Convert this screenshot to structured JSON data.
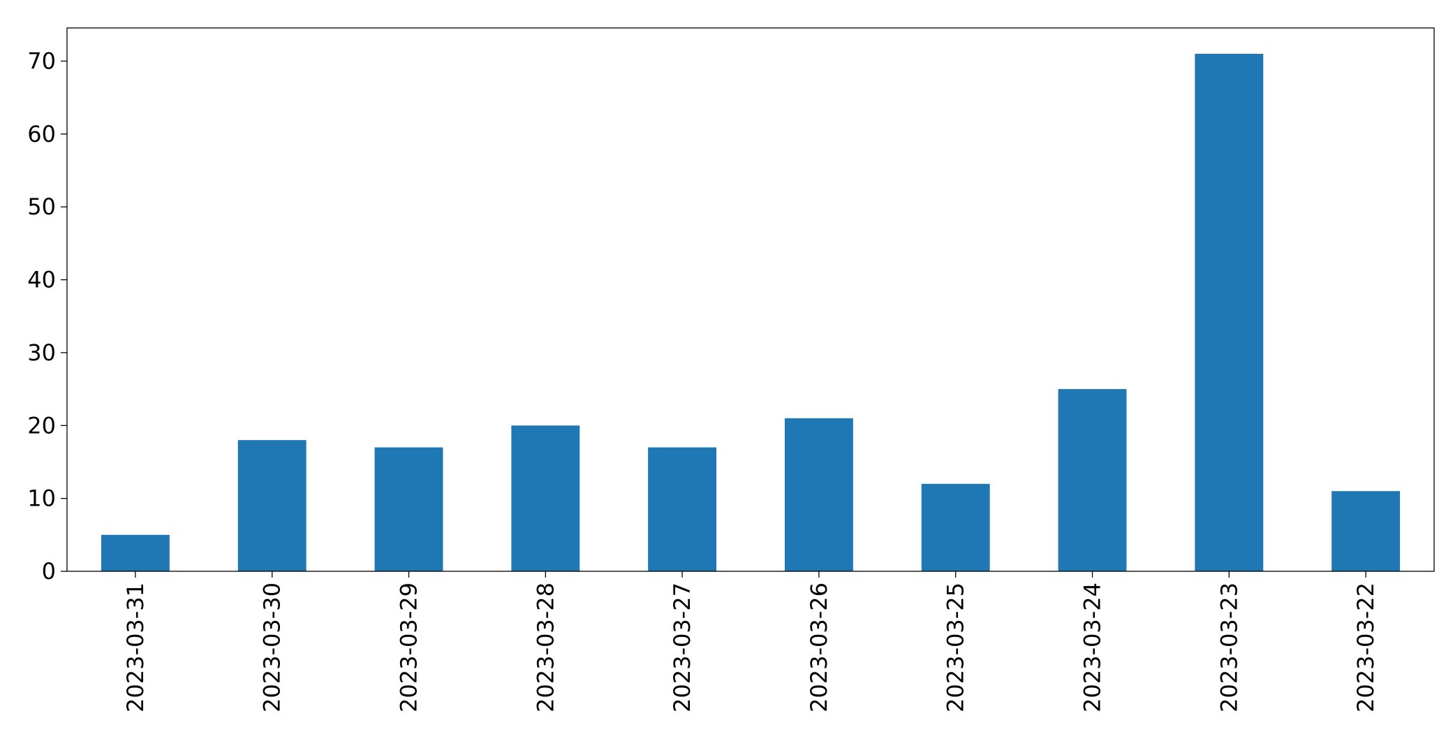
{
  "chart_data": {
    "type": "bar",
    "categories": [
      "2023-03-31",
      "2023-03-30",
      "2023-03-29",
      "2023-03-28",
      "2023-03-27",
      "2023-03-26",
      "2023-03-25",
      "2023-03-24",
      "2023-03-23",
      "2023-03-22"
    ],
    "values": [
      5,
      18,
      17,
      20,
      17,
      21,
      12,
      25,
      71,
      11
    ],
    "color": "#1f77b4",
    "ylim": [
      0,
      74.55
    ],
    "yticks": [
      0,
      10,
      20,
      30,
      40,
      50,
      60,
      70
    ],
    "grid": false
  }
}
